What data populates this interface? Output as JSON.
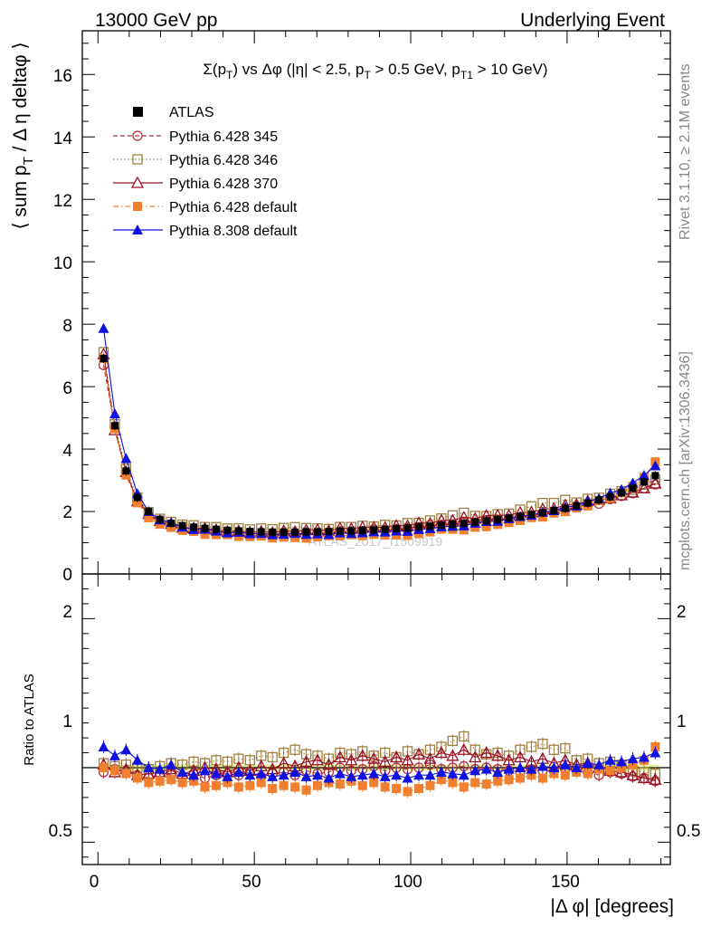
{
  "header": {
    "left": "13000 GeV pp",
    "right": "Underlying Event"
  },
  "side_text": {
    "rivet": "Rivet 3.1.10, ≥ 2.1M events",
    "mcplots": "mcplots.cern.ch [arXiv:1306.3436]"
  },
  "watermark": "ATLAS_2017_I1509919",
  "chart_data": {
    "type": "scatter",
    "title": "Σ(p_T) vs Δφ (|η| < 2.5, p_T > 0.5 GeV, p_T1 > 10 GeV)",
    "title_parts": {
      "a": "Σ(p",
      "a_sub": "T",
      "b": ") vs Δφ (|η| < 2.5, p",
      "b_sub": "T",
      "c": " > 0.5 GeV, p",
      "c_sub": "T1",
      "d": " > 10 GeV)"
    },
    "ylabel_parts": {
      "a": "⟨ sum p",
      "a_sub": "T",
      "b": " / Δ η deltaφ ⟩"
    },
    "xlabel": "|Δ φ| [degrees]",
    "ratio_ylabel": "Ratio to ATLAS",
    "xlim": [
      -5,
      183
    ],
    "ylim": [
      0,
      17.4
    ],
    "ratio_ylim": [
      0.35,
      2.3
    ],
    "main_yticks": [
      "0",
      "2",
      "4",
      "6",
      "8",
      "10",
      "12",
      "14",
      "16"
    ],
    "xticks": [
      "0",
      "50",
      "100",
      "150"
    ],
    "ratio_yticks": [
      "0.5",
      "1",
      "2"
    ],
    "legend_position": "top-left",
    "x": [
      1.8,
      5.4,
      9.0,
      12.6,
      16.2,
      19.8,
      23.4,
      27.0,
      30.6,
      34.2,
      37.8,
      41.4,
      45.0,
      48.6,
      52.2,
      55.8,
      59.4,
      63.0,
      66.6,
      70.2,
      73.8,
      77.4,
      81.0,
      84.6,
      88.2,
      91.8,
      95.4,
      99.0,
      102.6,
      106.2,
      109.8,
      113.4,
      117.0,
      120.6,
      124.2,
      127.8,
      131.4,
      135.0,
      138.6,
      142.2,
      145.8,
      149.4,
      153.0,
      156.6,
      160.2,
      163.8,
      167.4,
      171.0,
      174.6,
      178.2
    ],
    "data": {
      "name": "ATLAS",
      "values": [
        6.9,
        4.75,
        3.3,
        2.45,
        2.0,
        1.75,
        1.62,
        1.55,
        1.5,
        1.46,
        1.43,
        1.4,
        1.38,
        1.36,
        1.35,
        1.34,
        1.34,
        1.34,
        1.35,
        1.35,
        1.36,
        1.37,
        1.38,
        1.39,
        1.41,
        1.43,
        1.45,
        1.47,
        1.5,
        1.53,
        1.56,
        1.59,
        1.62,
        1.66,
        1.7,
        1.74,
        1.79,
        1.84,
        1.9,
        1.96,
        2.03,
        2.1,
        2.18,
        2.27,
        2.37,
        2.47,
        2.6,
        2.75,
        2.95,
        3.15
      ]
    },
    "series": [
      {
        "name": "Pythia 6.428 345",
        "color": "#b03040",
        "style": "dashed",
        "marker": "circle-open",
        "ratio": [
          0.97,
          0.99,
          0.98,
          0.95,
          0.93,
          0.96,
          0.95,
          0.94,
          0.96,
          0.93,
          0.95,
          0.96,
          0.95,
          0.97,
          0.94,
          0.96,
          0.97,
          0.95,
          0.98,
          0.96,
          0.97,
          1.0,
          0.98,
          0.99,
          1.01,
          0.98,
          1.0,
          0.99,
          1.0,
          1.02,
          0.99,
          1.0,
          1.01,
          0.99,
          1.0,
          0.99,
          0.98,
          0.97,
          0.99,
          0.98,
          0.98,
          0.99,
          0.98,
          0.97,
          0.95,
          0.97,
          0.96,
          0.94,
          0.93,
          0.91
        ]
      },
      {
        "name": "Pythia 6.428 346",
        "color": "#a08040",
        "style": "dotted",
        "marker": "square-open",
        "ratio": [
          1.03,
          1.01,
          1.02,
          1.0,
          0.99,
          1.01,
          1.03,
          1.02,
          1.04,
          1.03,
          1.05,
          1.04,
          1.06,
          1.05,
          1.08,
          1.07,
          1.1,
          1.12,
          1.09,
          1.08,
          1.06,
          1.1,
          1.09,
          1.11,
          1.08,
          1.1,
          1.07,
          1.11,
          1.09,
          1.12,
          1.14,
          1.18,
          1.21,
          1.12,
          1.09,
          1.1,
          1.08,
          1.12,
          1.14,
          1.16,
          1.12,
          1.13,
          1.05,
          1.06,
          1.03,
          1.04,
          1.02,
          0.98,
          0.97,
          0.96
        ]
      },
      {
        "name": "Pythia 6.428 370",
        "color": "#9a1020",
        "style": "solid",
        "marker": "triangle-open",
        "ratio": [
          1.02,
          0.97,
          0.99,
          0.95,
          0.96,
          0.97,
          0.99,
          0.96,
          0.98,
          1.0,
          0.99,
          0.97,
          1.0,
          0.98,
          1.01,
          0.99,
          1.03,
          1.01,
          1.04,
          1.05,
          1.02,
          1.07,
          1.05,
          1.08,
          1.06,
          1.04,
          1.07,
          1.05,
          1.09,
          1.06,
          1.1,
          1.08,
          1.12,
          1.07,
          1.1,
          1.08,
          1.05,
          1.07,
          1.04,
          1.06,
          1.03,
          1.05,
          1.02,
          1.03,
          1.0,
          0.98,
          0.97,
          0.95,
          0.93,
          0.92
        ]
      },
      {
        "name": "Pythia 6.428 default",
        "color": "#f08030",
        "style": "dashdot",
        "marker": "square-filled",
        "ratio": [
          1.0,
          0.98,
          0.96,
          0.93,
          0.9,
          0.91,
          0.92,
          0.9,
          0.91,
          0.87,
          0.88,
          0.9,
          0.87,
          0.88,
          0.9,
          0.86,
          0.88,
          0.87,
          0.85,
          0.88,
          0.9,
          0.89,
          0.91,
          0.88,
          0.9,
          0.87,
          0.86,
          0.84,
          0.86,
          0.88,
          0.92,
          0.9,
          0.87,
          0.9,
          0.89,
          0.91,
          0.92,
          0.93,
          0.95,
          0.93,
          0.96,
          0.95,
          0.97,
          0.96,
          0.99,
          0.98,
          1.0,
          1.02,
          1.05,
          1.14
        ]
      },
      {
        "name": "Pythia 8.308 default",
        "color": "#1010e0",
        "style": "solid",
        "marker": "triangle-filled",
        "ratio": [
          1.14,
          1.08,
          1.12,
          1.05,
          1.0,
          0.99,
          1.02,
          0.97,
          0.95,
          0.98,
          0.96,
          0.94,
          0.97,
          0.95,
          0.96,
          0.94,
          0.95,
          0.97,
          0.94,
          0.95,
          0.93,
          0.96,
          0.94,
          0.95,
          0.96,
          0.94,
          0.95,
          0.93,
          0.95,
          0.95,
          0.97,
          0.96,
          0.95,
          0.98,
          0.99,
          0.97,
          0.99,
          1.0,
          0.99,
          1.01,
          1.0,
          1.02,
          1.0,
          1.03,
          1.02,
          1.05,
          1.04,
          1.06,
          1.07,
          1.1
        ]
      }
    ]
  }
}
